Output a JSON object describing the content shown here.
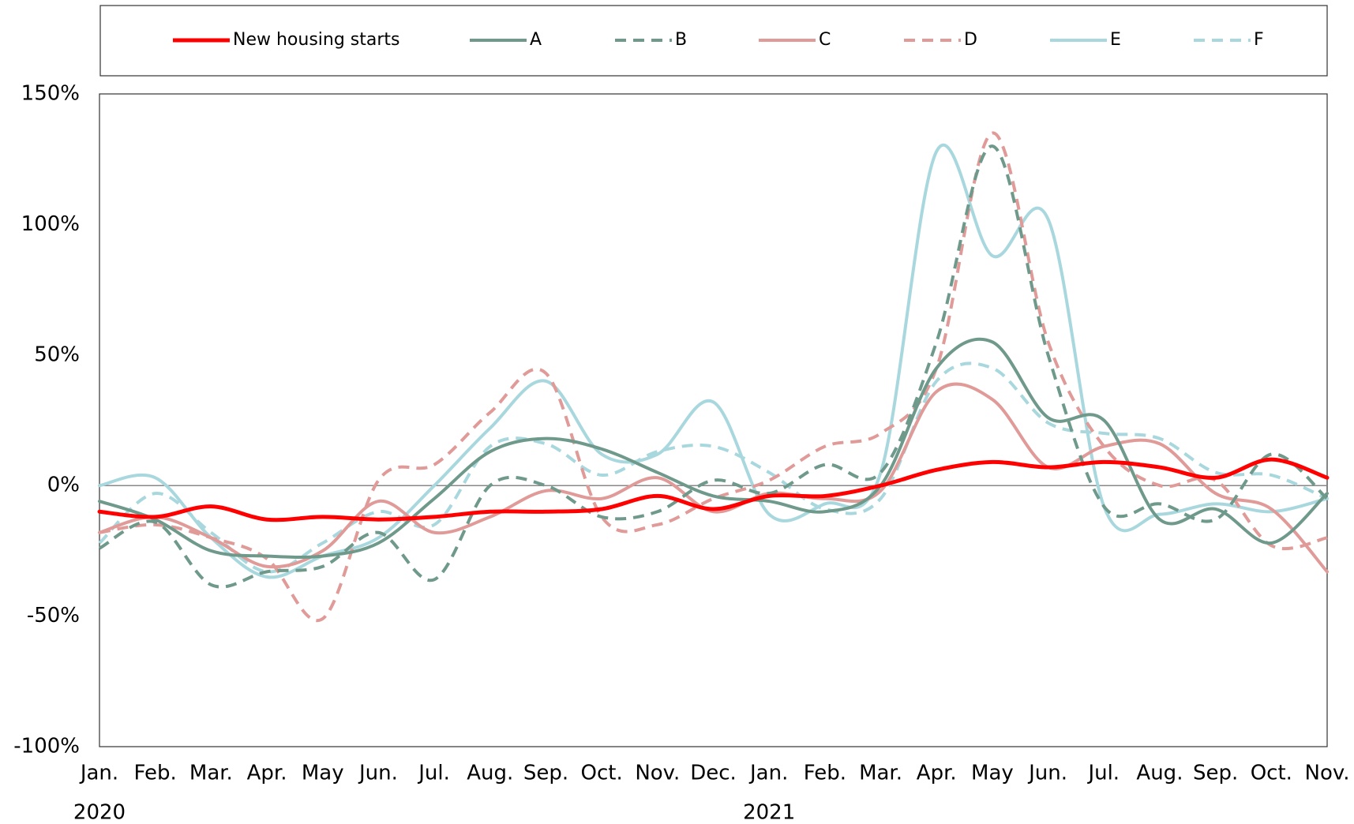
{
  "chart_data": {
    "type": "line",
    "legend": "top",
    "categories": [
      "Jan.",
      "Feb.",
      "Mar.",
      "Apr.",
      "May",
      "Jun.",
      "Jul.",
      "Aug.",
      "Sep.",
      "Oct.",
      "Nov.",
      "Dec.",
      "Jan.",
      "Feb.",
      "Mar.",
      "Apr.",
      "May",
      "Jun.",
      "Jul.",
      "Aug.",
      "Sep.",
      "Oct.",
      "Nov."
    ],
    "year_labels": [
      "2020",
      null,
      null,
      null,
      null,
      null,
      null,
      null,
      null,
      null,
      null,
      null,
      "2021",
      null,
      null,
      null,
      null,
      null,
      null,
      null,
      null,
      null,
      null
    ],
    "ylim": [
      -100,
      150
    ],
    "yticks": [
      {
        "value": -100,
        "label": "-100%"
      },
      {
        "value": -50,
        "label": "-50%"
      },
      {
        "value": 0,
        "label": "0%"
      },
      {
        "value": 50,
        "label": "50%"
      },
      {
        "value": 100,
        "label": "100%"
      },
      {
        "value": 150,
        "label": "150%"
      }
    ],
    "series": [
      {
        "name": "New housing starts",
        "color": "#ff0000",
        "dash": false,
        "width": 5,
        "values": [
          -10,
          -12,
          -8,
          -13,
          -12,
          -13,
          -12,
          -10,
          -10,
          -9,
          -4,
          -9,
          -4,
          -4,
          0,
          6,
          9,
          7,
          9,
          7,
          3,
          10,
          3
        ]
      },
      {
        "name": "A",
        "color": "#6f9a8b",
        "dash": false,
        "width": 4,
        "values": [
          -6,
          -13,
          -25,
          -27,
          -27,
          -22,
          -5,
          13,
          18,
          14,
          5,
          -4,
          -6,
          -10,
          0,
          45,
          55,
          26,
          25,
          -13,
          -9,
          -22,
          -3
        ]
      },
      {
        "name": "B",
        "color": "#6f9a8b",
        "dash": true,
        "width": 4,
        "values": [
          -24,
          -14,
          -38,
          -33,
          -31,
          -18,
          -36,
          0,
          0,
          -12,
          -10,
          2,
          -3,
          8,
          5,
          55,
          130,
          50,
          -8,
          -7,
          -13,
          12,
          -5
        ]
      },
      {
        "name": "C",
        "color": "#e09a98",
        "dash": false,
        "width": 4,
        "values": [
          -18,
          -12,
          -20,
          -31,
          -25,
          -6,
          -18,
          -12,
          -2,
          -5,
          3,
          -10,
          -3,
          -5,
          -2,
          36,
          33,
          7,
          15,
          16,
          -3,
          -9,
          -33
        ]
      },
      {
        "name": "D",
        "color": "#e09a98",
        "dash": true,
        "width": 4,
        "values": [
          -18,
          -15,
          -20,
          -28,
          -51,
          2,
          8,
          28,
          43,
          -12,
          -15,
          -5,
          2,
          15,
          20,
          45,
          135,
          55,
          15,
          0,
          2,
          -23,
          -20
        ]
      },
      {
        "name": "E",
        "color": "#a8d8de",
        "dash": false,
        "width": 4,
        "values": [
          0,
          3,
          -20,
          -35,
          -27,
          -20,
          0,
          22,
          40,
          12,
          12,
          32,
          -11,
          -7,
          5,
          128,
          88,
          102,
          -8,
          -11,
          -7,
          -10,
          -5
        ]
      },
      {
        "name": "F",
        "color": "#a8d8de",
        "dash": true,
        "width": 4,
        "values": [
          -22,
          -3,
          -18,
          -33,
          -22,
          -10,
          -15,
          15,
          16,
          4,
          13,
          15,
          5,
          -9,
          -5,
          40,
          45,
          24,
          20,
          18,
          5,
          4,
          -5
        ]
      }
    ]
  }
}
